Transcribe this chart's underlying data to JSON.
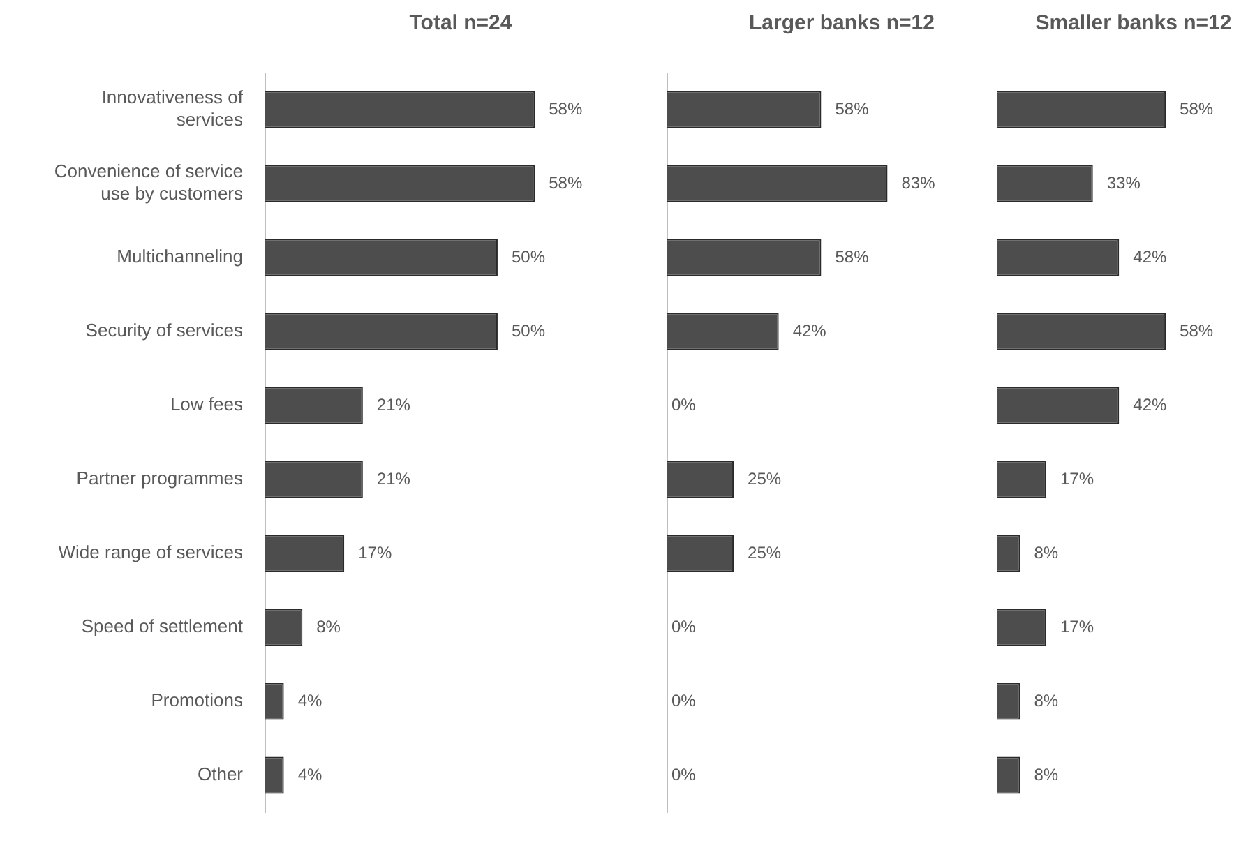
{
  "chart_data": [
    {
      "type": "bar",
      "orientation": "horizontal",
      "title": "Total n=24",
      "tick_labels": "y",
      "categories": [
        "Innovativeness of services",
        "Convenience of service use by customers",
        "Multichanneling",
        "Security of services",
        "Low fees",
        "Partner programmes",
        "Wide range of services",
        "Speed of settlement",
        "Promotions",
        "Other"
      ],
      "series": [
        {
          "color": "#4d4d4d",
          "values": [
            58,
            58,
            50,
            50,
            21,
            21,
            17,
            8,
            4,
            4
          ],
          "value_labels": [
            "58%",
            "58%",
            "50%",
            "50%",
            "21%",
            "21%",
            "17%",
            "8%",
            "4%",
            "4%"
          ]
        }
      ]
    },
    {
      "type": "bar",
      "orientation": "horizontal",
      "title": "Larger banks n=12",
      "tick_labels": false,
      "categories": [
        null,
        null,
        null,
        null,
        null,
        null,
        null,
        null,
        null,
        null
      ],
      "series": [
        {
          "color": "#4d4d4d",
          "values": [
            58,
            83,
            58,
            42,
            0,
            25,
            25,
            0,
            0,
            0
          ],
          "value_labels": [
            "58%",
            "83%",
            "58%",
            "42%",
            "0%",
            "25%",
            "25%",
            "0%",
            "0%",
            "0%"
          ]
        }
      ]
    },
    {
      "type": "bar",
      "orientation": "horizontal",
      "title": "Smaller banks n=12",
      "tick_labels": false,
      "categories": [
        null,
        null,
        null,
        null,
        null,
        null,
        null,
        null,
        null,
        null
      ],
      "series": [
        {
          "color": "#4d4d4d",
          "values": [
            58,
            33,
            42,
            58,
            42,
            17,
            8,
            17,
            8,
            8
          ],
          "value_labels": [
            "58%",
            "33%",
            "42%",
            "58%",
            "42%",
            "17%",
            "8%",
            "17%",
            "8%",
            "8%"
          ]
        }
      ]
    }
  ]
}
